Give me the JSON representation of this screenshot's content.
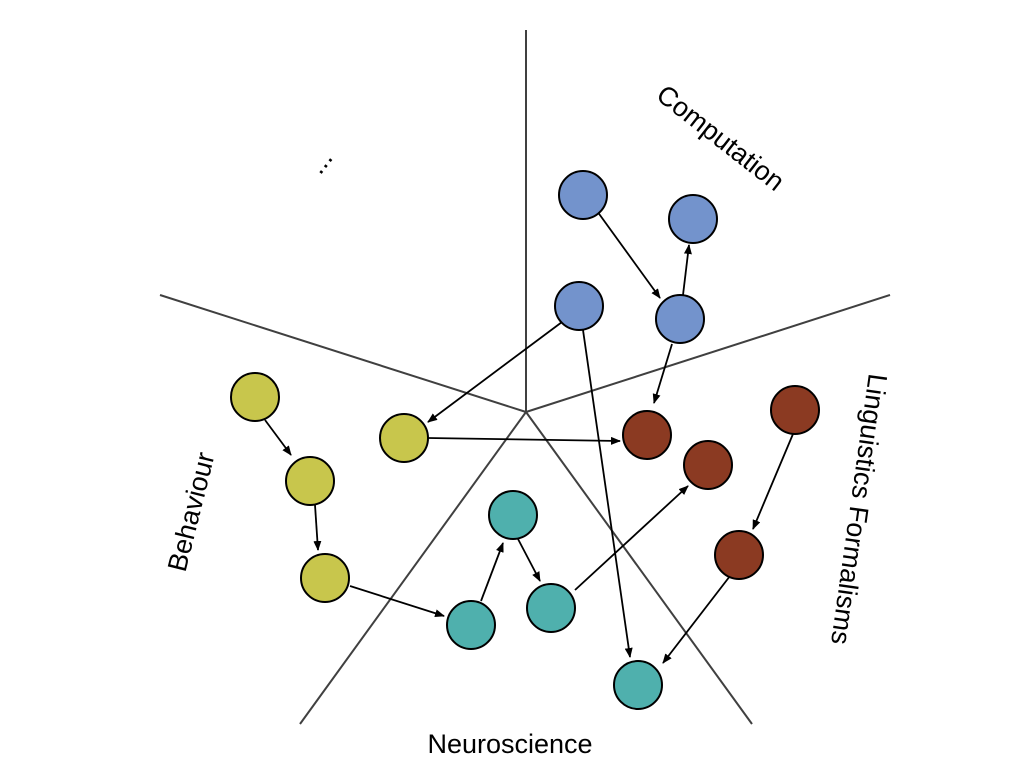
{
  "labels": {
    "computation": "Computation",
    "linguistics": "Linguistics Formalisms",
    "neuroscience": "Neuroscience",
    "behaviour": "Behaviour",
    "other": "..."
  },
  "colors": {
    "computation": "#7393cc",
    "linguistics": "#8b3a22",
    "neuroscience": "#4fb0ad",
    "behaviour": "#c8c64c",
    "divider": "#404040"
  }
}
